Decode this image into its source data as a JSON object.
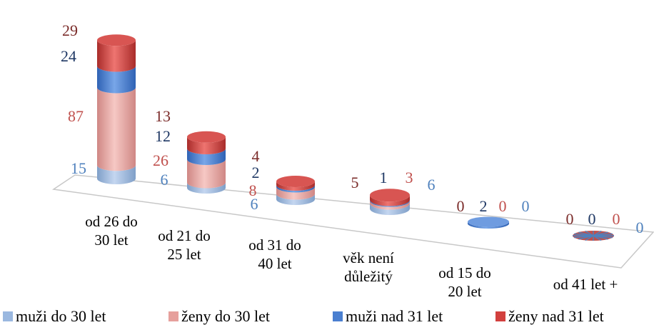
{
  "chart_data": {
    "type": "bar",
    "stacked": true,
    "style": "3d-cylinder",
    "categories": [
      "od 26 do\n30 let",
      "od 21 do\n25 let",
      "od 31 do\n40 let",
      "věk není\ndůležitý",
      "od 15 do\n20 let",
      "od 41 let +"
    ],
    "series": [
      {
        "name": "muži do 30 let",
        "values": [
          15,
          6,
          6,
          6,
          0,
          0
        ],
        "color": "#9ab8e0"
      },
      {
        "name": "ženy do 30 let",
        "values": [
          87,
          26,
          8,
          3,
          0,
          0
        ],
        "color": "#e6a09c"
      },
      {
        "name": "muži nad 31 let",
        "values": [
          24,
          12,
          2,
          1,
          2,
          0
        ],
        "color": "#4a7fd0"
      },
      {
        "name": "ženy nad 31 let",
        "values": [
          29,
          13,
          4,
          5,
          0,
          0
        ],
        "color": "#d2403e"
      }
    ],
    "legend_position": "bottom",
    "grid": false
  }
}
